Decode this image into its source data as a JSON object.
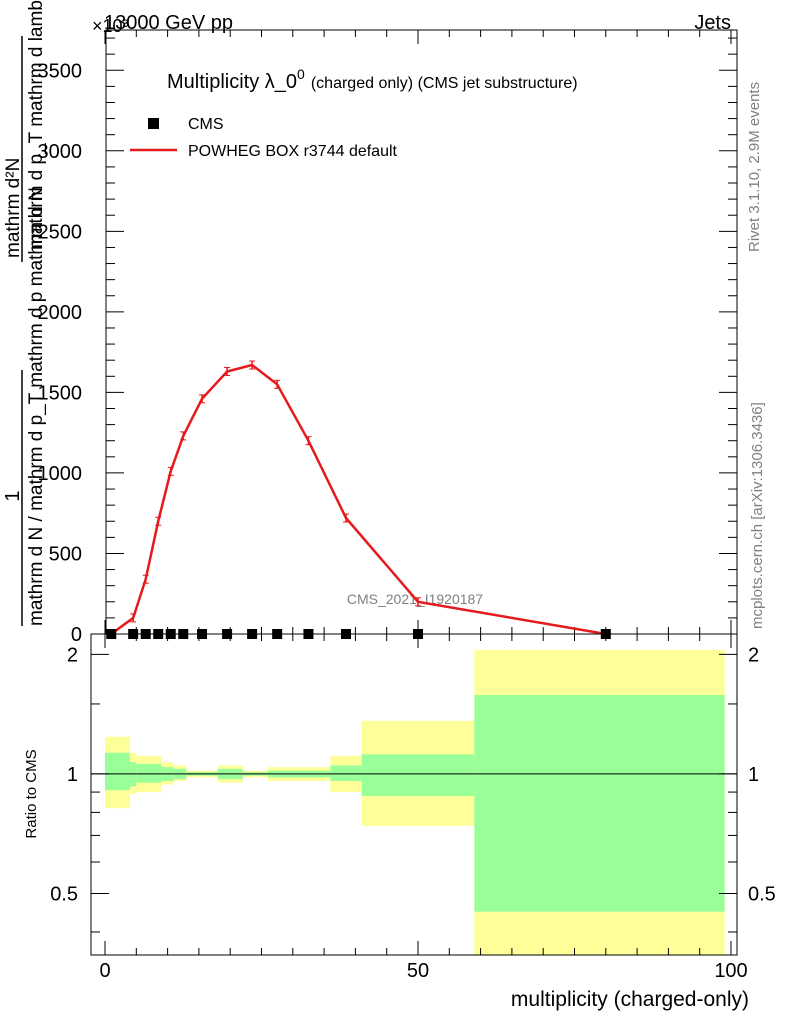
{
  "header": {
    "left": "13000 GeV pp",
    "right": "Jets",
    "exponent_label": "×10³"
  },
  "side_labels": {
    "rivet": "Rivet 3.1.10,  2.9M events",
    "mcplots": "mcplots.cern.ch [arXiv:1306.3436]"
  },
  "chart_data": [
    {
      "type": "line",
      "title": "Multiplicity λ_0",
      "title_superscript": "0",
      "subtitle": "(charged only) (CMS jet substructure)",
      "watermark": "CMS_2021_I1920187",
      "ylabel_top": "1",
      "ylabel_den": "mathrm d N / mathrm d p_T mathrm d p mathrm d N",
      "ylabel_num": "mathrm d²N",
      "ylabel_num_extra": "mathrm d p_T mathrm d lambda",
      "xlim": [
        -3,
        100
      ],
      "ylim": [
        0,
        3.75
      ],
      "y_scale_multiplier": 1000,
      "y_ticks": [
        0,
        0.5,
        1.0,
        1.5,
        2.0,
        2.5,
        3.0,
        3.5
      ],
      "y_tick_labels": [
        "0",
        "500",
        "1000",
        "1500",
        "2000",
        "2500",
        "3000",
        "3500"
      ],
      "legend": [
        {
          "name": "CMS",
          "marker": "square",
          "color": "#000000"
        },
        {
          "name": "POWHEG BOX r3744 default",
          "marker": "line",
          "color": "#e41a1c"
        }
      ],
      "series": [
        {
          "name": "CMS",
          "color": "#000000",
          "x": [
            1,
            4.5,
            6.5,
            8.5,
            10.5,
            12.5,
            15.5,
            19.5,
            23.5,
            27.5,
            32.5,
            38.5,
            50,
            80
          ],
          "y": [
            0,
            0,
            0,
            0,
            0,
            0,
            0,
            0,
            0,
            0,
            0,
            0,
            0,
            0
          ]
        },
        {
          "name": "POWHEG BOX r3744 default",
          "color": "#e41a1c",
          "x": [
            1,
            4.5,
            6.5,
            8.5,
            10.5,
            12.5,
            15.5,
            19.5,
            23.5,
            27.5,
            32.5,
            38.5,
            50,
            80
          ],
          "y": [
            0.0,
            0.1,
            0.34,
            0.7,
            1.01,
            1.23,
            1.46,
            1.63,
            1.67,
            1.55,
            1.2,
            0.72,
            0.2,
            0.0
          ]
        }
      ]
    },
    {
      "type": "area",
      "ylabel": "Ratio to CMS",
      "xlabel": "multiplicity (charged-only)",
      "xlim": [
        -3,
        100
      ],
      "ylim": [
        0.35,
        2.25
      ],
      "y_scale": "log",
      "y_ticks": [
        0.5,
        1,
        2
      ],
      "y_tick_labels": [
        "0.5",
        "1",
        "2"
      ],
      "x_ticks": [
        0,
        50,
        100
      ],
      "x_tick_labels": [
        "0",
        "50",
        "100"
      ],
      "bands": [
        {
          "x": [
            0,
            4
          ],
          "green": [
            0.91,
            1.13
          ],
          "yellow": [
            0.82,
            1.24
          ]
        },
        {
          "x": [
            4,
            5
          ],
          "green": [
            0.93,
            1.07
          ],
          "yellow": [
            0.89,
            1.13
          ]
        },
        {
          "x": [
            5,
            9
          ],
          "green": [
            0.95,
            1.06
          ],
          "yellow": [
            0.9,
            1.11
          ]
        },
        {
          "x": [
            9,
            11
          ],
          "green": [
            0.96,
            1.04
          ],
          "yellow": [
            0.94,
            1.07
          ]
        },
        {
          "x": [
            11,
            13
          ],
          "green": [
            0.97,
            1.03
          ],
          "yellow": [
            0.96,
            1.05
          ]
        },
        {
          "x": [
            13,
            18
          ],
          "green": [
            0.99,
            1.01
          ],
          "yellow": [
            0.98,
            1.02
          ]
        },
        {
          "x": [
            18,
            22
          ],
          "green": [
            0.97,
            1.03
          ],
          "yellow": [
            0.95,
            1.05
          ]
        },
        {
          "x": [
            22,
            26
          ],
          "green": [
            0.99,
            1.01
          ],
          "yellow": [
            0.98,
            1.02
          ]
        },
        {
          "x": [
            26,
            36
          ],
          "green": [
            0.98,
            1.02
          ],
          "yellow": [
            0.96,
            1.04
          ]
        },
        {
          "x": [
            36,
            41
          ],
          "green": [
            0.96,
            1.05
          ],
          "yellow": [
            0.9,
            1.11
          ]
        },
        {
          "x": [
            41,
            59
          ],
          "green": [
            0.88,
            1.12
          ],
          "yellow": [
            0.74,
            1.36
          ]
        },
        {
          "x": [
            59,
            99
          ],
          "green": [
            0.45,
            1.58
          ],
          "yellow": [
            0.35,
            2.05
          ]
        }
      ],
      "reference_line": 1
    }
  ]
}
